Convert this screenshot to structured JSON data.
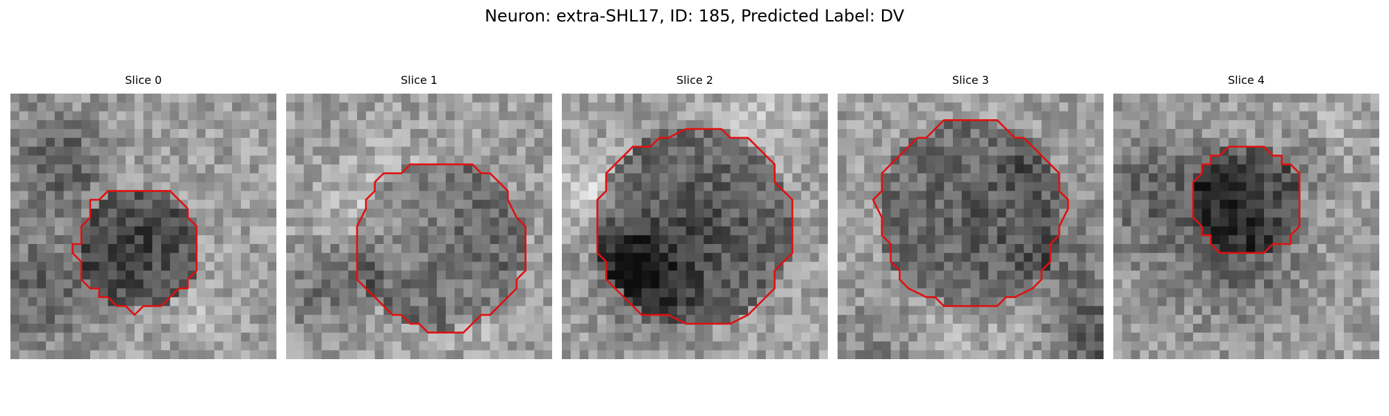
{
  "figure": {
    "title": "Neuron: extra-SHL17, ID: 185, Predicted Label: DV",
    "contour_color": "#e01010"
  },
  "panels": [
    {
      "title": "Slice 0",
      "contour_radius": 0.23,
      "contour_center": [
        0.48,
        0.58
      ],
      "cell_darkness": 0.36,
      "seed": 11
    },
    {
      "title": "Slice 1",
      "contour_radius": 0.32,
      "contour_center": [
        0.58,
        0.57
      ],
      "cell_darkness": 0.28,
      "seed": 23
    },
    {
      "title": "Slice 2",
      "contour_radius": 0.37,
      "contour_center": [
        0.5,
        0.5
      ],
      "cell_darkness": 0.3,
      "seed": 37
    },
    {
      "title": "Slice 3",
      "contour_radius": 0.35,
      "contour_center": [
        0.5,
        0.45
      ],
      "cell_darkness": 0.25,
      "seed": 41
    },
    {
      "title": "Slice 4",
      "contour_radius": 0.21,
      "contour_center": [
        0.5,
        0.4
      ],
      "cell_darkness": 0.27,
      "seed": 53
    }
  ]
}
